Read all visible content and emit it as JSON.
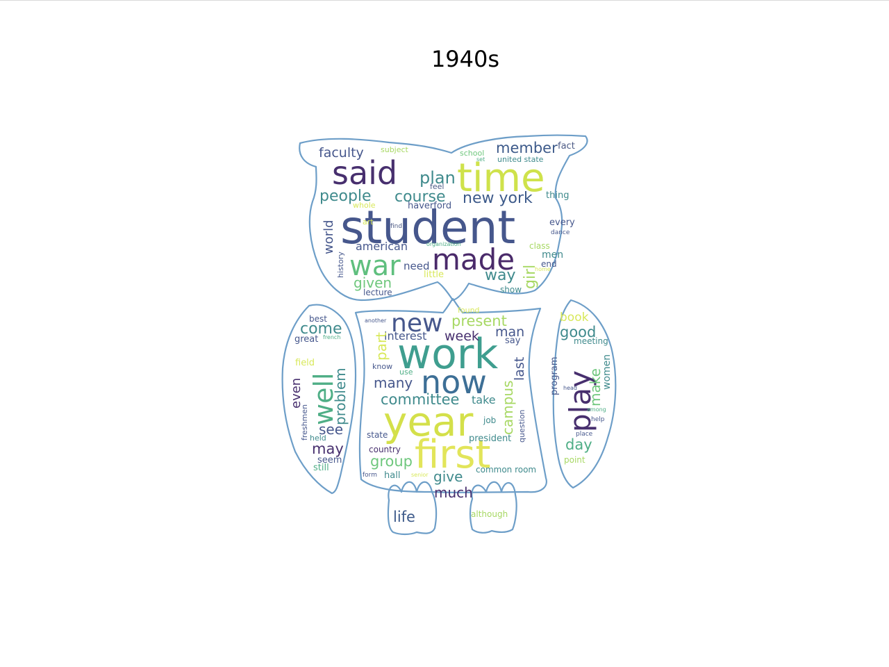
{
  "title": "1940s",
  "palette": {
    "outline": "#6d9ec8"
  },
  "words": [
    {
      "text": "student",
      "color": "#46578c"
    },
    {
      "text": "time",
      "color": "#cfe24b"
    },
    {
      "text": "said",
      "color": "#472f6e"
    },
    {
      "text": "made",
      "color": "#4a2a6a"
    },
    {
      "text": "war",
      "color": "#5fbf7e"
    },
    {
      "text": "plan",
      "color": "#3f8a8c"
    },
    {
      "text": "course",
      "color": "#3f8a8c"
    },
    {
      "text": "new york",
      "color": "#3d5a8a"
    },
    {
      "text": "people",
      "color": "#3f8a8c"
    },
    {
      "text": "faculty",
      "color": "#46578c"
    },
    {
      "text": "member",
      "color": "#3d5a8a"
    },
    {
      "text": "fact",
      "color": "#4c5a85"
    },
    {
      "text": "subject",
      "color": "#a7d863"
    },
    {
      "text": "school",
      "color": "#6fc77d"
    },
    {
      "text": "set",
      "color": "#4fae86"
    },
    {
      "text": "united state",
      "color": "#3f8a8c"
    },
    {
      "text": "feel",
      "color": "#4c5a85"
    },
    {
      "text": "whole",
      "color": "#d8e85a"
    },
    {
      "text": "haverford",
      "color": "#46578c"
    },
    {
      "text": "thing",
      "color": "#3f8a8c"
    },
    {
      "text": "every",
      "color": "#46578c"
    },
    {
      "text": "art",
      "color": "#d8e85a"
    },
    {
      "text": "find",
      "color": "#4c5a85"
    },
    {
      "text": "dance",
      "color": "#46578c"
    },
    {
      "text": "world",
      "color": "#46578c"
    },
    {
      "text": "american",
      "color": "#46578c"
    },
    {
      "text": "organization",
      "color": "#4fae86"
    },
    {
      "text": "class",
      "color": "#a7d863"
    },
    {
      "text": "men",
      "color": "#3f8a8c"
    },
    {
      "text": "end",
      "color": "#46578c"
    },
    {
      "text": "home",
      "color": "#d8e85a"
    },
    {
      "text": "history",
      "color": "#46578c"
    },
    {
      "text": "need",
      "color": "#46578c"
    },
    {
      "text": "little",
      "color": "#d8e85a"
    },
    {
      "text": "way",
      "color": "#3f8a8c"
    },
    {
      "text": "girl",
      "color": "#a7d863"
    },
    {
      "text": "given",
      "color": "#6fc77d"
    },
    {
      "text": "lecture",
      "color": "#46578c"
    },
    {
      "text": "show",
      "color": "#3f8a8c"
    },
    {
      "text": "new",
      "color": "#46578c"
    },
    {
      "text": "present",
      "color": "#a7d863"
    },
    {
      "text": "man",
      "color": "#46578c"
    },
    {
      "text": "found",
      "color": "#d8e85a"
    },
    {
      "text": "another",
      "color": "#46578c"
    },
    {
      "text": "work",
      "color": "#3f9e8f"
    },
    {
      "text": "interest",
      "color": "#46578c"
    },
    {
      "text": "week",
      "color": "#472f6e"
    },
    {
      "text": "say",
      "color": "#46578c"
    },
    {
      "text": "part",
      "color": "#d8e85a"
    },
    {
      "text": "now",
      "color": "#3d6f96"
    },
    {
      "text": "many",
      "color": "#46578c"
    },
    {
      "text": "last",
      "color": "#46578c"
    },
    {
      "text": "know",
      "color": "#46578c"
    },
    {
      "text": "use",
      "color": "#4fae86"
    },
    {
      "text": "committee",
      "color": "#3f8a8c"
    },
    {
      "text": "take",
      "color": "#3f8a8c"
    },
    {
      "text": "campus",
      "color": "#a7d863"
    },
    {
      "text": "year",
      "color": "#d4e04a"
    },
    {
      "text": "job",
      "color": "#3f8a8c"
    },
    {
      "text": "question",
      "color": "#46578c"
    },
    {
      "text": "state",
      "color": "#46578c"
    },
    {
      "text": "first",
      "color": "#e2e55a"
    },
    {
      "text": "president",
      "color": "#3f8a8c"
    },
    {
      "text": "country",
      "color": "#472f6e"
    },
    {
      "text": "group",
      "color": "#6fc77d"
    },
    {
      "text": "give",
      "color": "#3f8a8c"
    },
    {
      "text": "common room",
      "color": "#3f8a8c"
    },
    {
      "text": "form",
      "color": "#46578c"
    },
    {
      "text": "hall",
      "color": "#3f8a8c"
    },
    {
      "text": "senior",
      "color": "#d8e85a"
    },
    {
      "text": "much",
      "color": "#472f6e"
    },
    {
      "text": "life",
      "color": "#3d5a8a"
    },
    {
      "text": "although",
      "color": "#a7d863"
    },
    {
      "text": "come",
      "color": "#3f8a8c"
    },
    {
      "text": "well",
      "color": "#4fae86"
    },
    {
      "text": "best",
      "color": "#46578c"
    },
    {
      "text": "great",
      "color": "#46578c"
    },
    {
      "text": "french",
      "color": "#4fae86"
    },
    {
      "text": "problem",
      "color": "#3f8a8c"
    },
    {
      "text": "field",
      "color": "#d8e85a"
    },
    {
      "text": "even",
      "color": "#472f6e"
    },
    {
      "text": "see",
      "color": "#46578c"
    },
    {
      "text": "freshmen",
      "color": "#46578c"
    },
    {
      "text": "may",
      "color": "#472f6e"
    },
    {
      "text": "held",
      "color": "#3f8a8c"
    },
    {
      "text": "seem",
      "color": "#46578c"
    },
    {
      "text": "still",
      "color": "#4fae86"
    },
    {
      "text": "play",
      "color": "#472f6e"
    },
    {
      "text": "book",
      "color": "#d8e85a"
    },
    {
      "text": "good",
      "color": "#3f8a8c"
    },
    {
      "text": "meeting",
      "color": "#3f8a8c"
    },
    {
      "text": "program",
      "color": "#46578c"
    },
    {
      "text": "make",
      "color": "#6fc77d"
    },
    {
      "text": "women",
      "color": "#3f8a8c"
    },
    {
      "text": "head",
      "color": "#46578c"
    },
    {
      "text": "among",
      "color": "#4fae86"
    },
    {
      "text": "help",
      "color": "#46578c"
    },
    {
      "text": "place",
      "color": "#46578c"
    },
    {
      "text": "day",
      "color": "#4fae86"
    },
    {
      "text": "point",
      "color": "#a7d863"
    }
  ]
}
